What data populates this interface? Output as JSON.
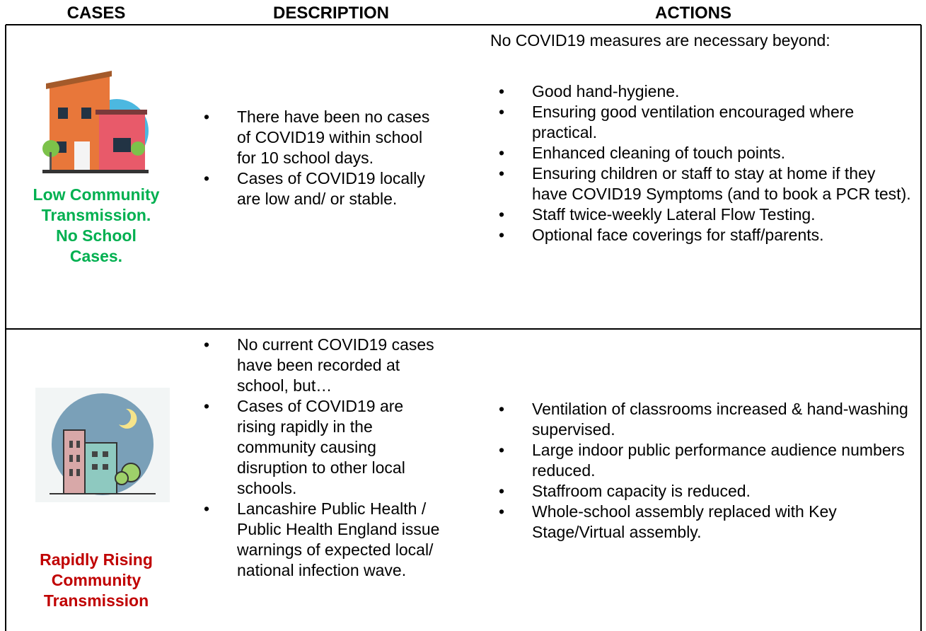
{
  "header": {
    "columns": [
      "CASES",
      "DESCRIPTION",
      "ACTIONS"
    ]
  },
  "rows": [
    {
      "case_lines": [
        "Low Community",
        "Transmission.",
        "No School",
        "Cases."
      ],
      "description": [
        "There have been no cases of COVID19 within school for 10 school days.",
        "Cases of COVID19 locally are low and/ or stable."
      ],
      "actions_intro": "No COVID19 measures are necessary beyond:",
      "actions": [
        "Good hand-hygiene.",
        "Ensuring good ventilation encouraged where practical.",
        "Enhanced cleaning of touch points.",
        "Ensuring children or staff to stay at home if they have COVID19 Symptoms (and to book a PCR test).",
        "Staff twice-weekly Lateral Flow Testing.",
        "Optional face coverings for staff/parents."
      ]
    },
    {
      "case_lines": [
        "Rapidly Rising",
        "Community",
        "Transmission"
      ],
      "description": [
        "No current COVID19 cases have been recorded at school, but…",
        "Cases of COVID19 are rising rapidly in the community causing disruption to other local schools.",
        "Lancashire Public Health / Public Health England issue warnings of expected local/ national infection wave."
      ],
      "actions": [
        "Ventilation of classrooms increased & hand-washing supervised.",
        "Large indoor public performance audience numbers reduced.",
        "Staffroom capacity is reduced.",
        "Whole-school assembly replaced with Key Stage/Virtual assembly."
      ]
    }
  ]
}
